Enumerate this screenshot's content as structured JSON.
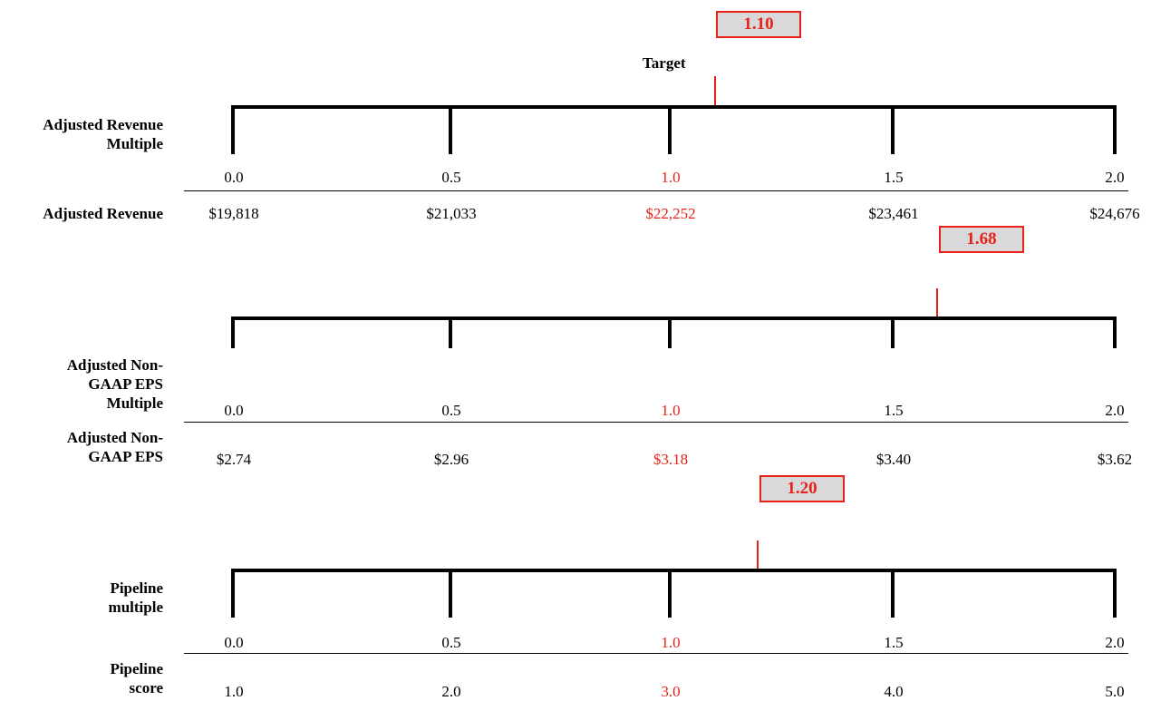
{
  "target_label": "Target",
  "highlight_color": "#e8211b",
  "scales": [
    {
      "multiple_label_lines": [
        "Adjusted Revenue",
        "Multiple"
      ],
      "value_label_lines": [
        "Adjusted Revenue"
      ],
      "result": "1.10",
      "multiples": [
        "0.0",
        "0.5",
        "1.0",
        "1.5",
        "2.0"
      ],
      "values": [
        "$19,818",
        "$21,033",
        "$22,252",
        "$23,461",
        "$24,676"
      ],
      "target_index": 2
    },
    {
      "multiple_label_lines": [
        "Adjusted Non-",
        "GAAP EPS",
        "Multiple"
      ],
      "value_label_lines": [
        "Adjusted Non-",
        "GAAP EPS"
      ],
      "result": "1.68",
      "multiples": [
        "0.0",
        "0.5",
        "1.0",
        "1.5",
        "2.0"
      ],
      "values": [
        "$2.74",
        "$2.96",
        "$3.18",
        "$3.40",
        "$3.62"
      ],
      "target_index": 2
    },
    {
      "multiple_label_lines": [
        "Pipeline",
        "multiple"
      ],
      "value_label_lines": [
        "Pipeline",
        "score"
      ],
      "result": "1.20",
      "multiples": [
        "0.0",
        "0.5",
        "1.0",
        "1.5",
        "2.0"
      ],
      "values": [
        "1.0",
        "2.0",
        "3.0",
        "4.0",
        "5.0"
      ],
      "target_index": 2
    }
  ]
}
